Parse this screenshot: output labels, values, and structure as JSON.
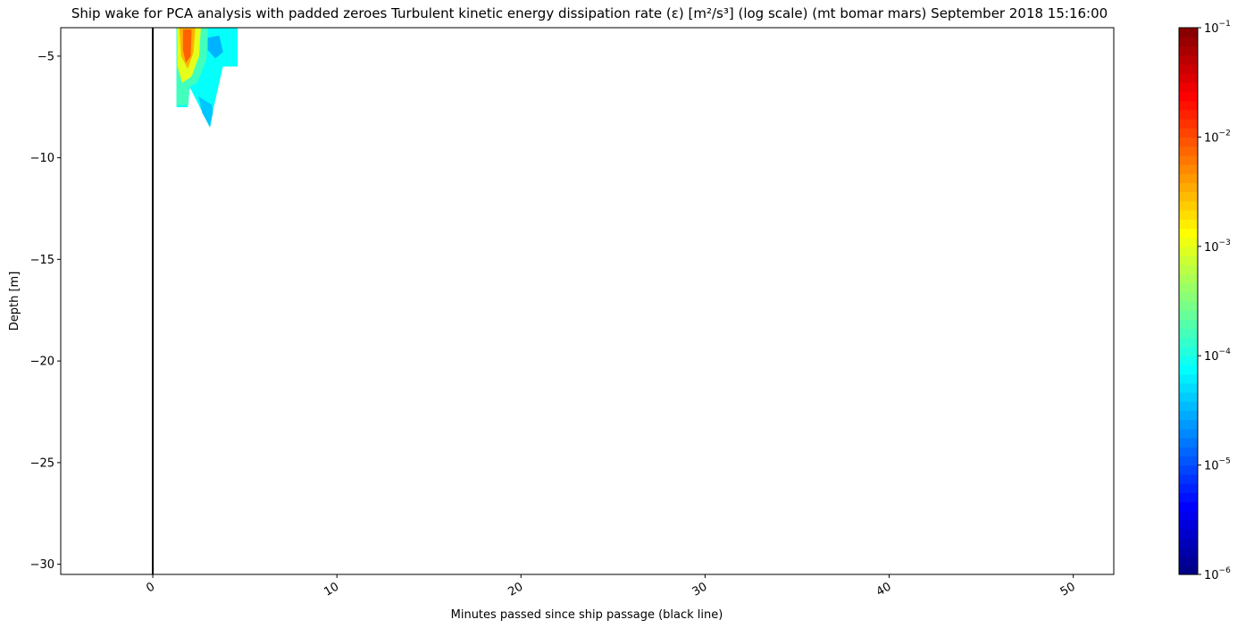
{
  "chart_data": {
    "type": "heatmap",
    "title": "Ship wake for PCA analysis with padded zeroes Turbulent kinetic energy dissipation rate (ε) [m²/s³] (log scale) (mt bomar mars) September 2018 15:16:00",
    "xlabel": "Minutes passed since ship passage (black line)",
    "ylabel": "Depth [m]",
    "xlim": [
      -5,
      52.2
    ],
    "ylim": [
      -30.5,
      -3.6
    ],
    "x_ticks": [
      0,
      10,
      20,
      30,
      40,
      50
    ],
    "x_tick_labels": [
      "0",
      "10",
      "20",
      "30",
      "40",
      "50"
    ],
    "y_ticks": [
      -5,
      -10,
      -15,
      -20,
      -25,
      -30
    ],
    "y_tick_labels": [
      "−5",
      "−10",
      "−15",
      "−20",
      "−25",
      "−30"
    ],
    "ship_passage_marker_x": 0,
    "colormap": "jet",
    "colorbar": {
      "scale": "log",
      "range": [
        1e-06,
        0.1
      ],
      "ticks": [
        -6,
        -5,
        -4,
        -3,
        -2,
        -1
      ],
      "tick_labels": [
        "10",
        "10",
        "10",
        "10",
        "10",
        "10"
      ],
      "tick_exponents": [
        "−6",
        "−5",
        "−4",
        "−3",
        "−2",
        "−1"
      ]
    },
    "grid": false,
    "data_patches": [
      {
        "log10_value": -4.1,
        "points": [
          [
            1.3,
            -3.6
          ],
          [
            4.6,
            -3.6
          ],
          [
            4.6,
            -5.5
          ],
          [
            3.8,
            -5.5
          ],
          [
            3.3,
            -7.5
          ],
          [
            3.1,
            -8.5
          ],
          [
            2.4,
            -7.2
          ],
          [
            2.0,
            -6.5
          ],
          [
            1.9,
            -7.5
          ],
          [
            1.3,
            -7.5
          ]
        ]
      },
      {
        "log10_value": -4.4,
        "points": [
          [
            2.5,
            -7.0
          ],
          [
            3.2,
            -7.4
          ],
          [
            3.25,
            -7.8
          ],
          [
            3.1,
            -8.45
          ],
          [
            2.7,
            -7.8
          ]
        ]
      },
      {
        "log10_value": -4.5,
        "points": [
          [
            3.0,
            -4.1
          ],
          [
            3.6,
            -4.0
          ],
          [
            3.8,
            -4.8
          ],
          [
            3.4,
            -5.1
          ],
          [
            3.0,
            -4.7
          ]
        ]
      },
      {
        "log10_value": -3.8,
        "points": [
          [
            1.3,
            -3.6
          ],
          [
            3.0,
            -3.6
          ],
          [
            2.9,
            -5.2
          ],
          [
            2.4,
            -6.3
          ],
          [
            2.0,
            -6.5
          ],
          [
            1.9,
            -7.4
          ],
          [
            1.3,
            -7.4
          ]
        ]
      },
      {
        "log10_value": -3.0,
        "points": [
          [
            1.35,
            -3.6
          ],
          [
            2.6,
            -3.6
          ],
          [
            2.5,
            -5.0
          ],
          [
            2.1,
            -6.0
          ],
          [
            1.6,
            -6.3
          ],
          [
            1.35,
            -5.5
          ]
        ]
      },
      {
        "log10_value": -2.5,
        "points": [
          [
            1.45,
            -3.6
          ],
          [
            2.3,
            -3.6
          ],
          [
            2.2,
            -4.8
          ],
          [
            1.9,
            -5.6
          ],
          [
            1.55,
            -5.0
          ]
        ]
      },
      {
        "log10_value": -2.1,
        "points": [
          [
            1.65,
            -3.7
          ],
          [
            2.1,
            -3.7
          ],
          [
            2.05,
            -5.0
          ],
          [
            1.8,
            -5.3
          ],
          [
            1.65,
            -4.7
          ]
        ]
      }
    ]
  }
}
